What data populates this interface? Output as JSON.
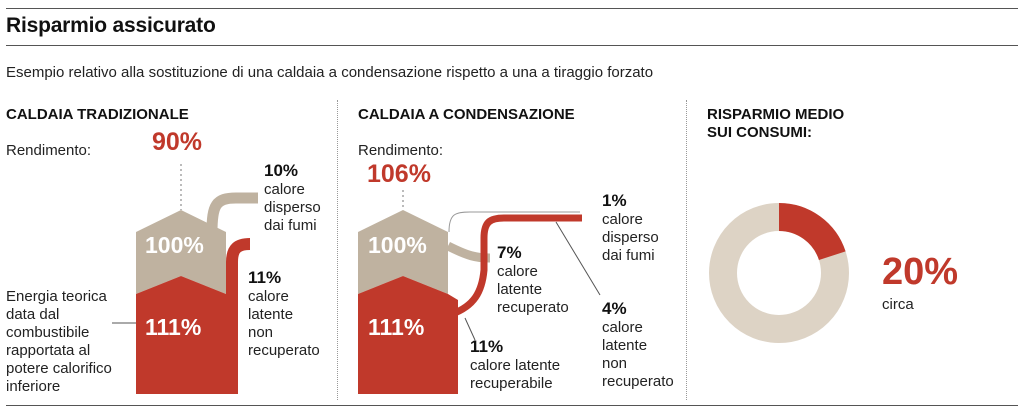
{
  "title": "Risparmio assicurato",
  "subtitle": "Esempio relativo alla sostituzione di una caldaia a condensazione rispetto a una a tiraggio forzato",
  "colors": {
    "beige": "#bfb2a0",
    "red": "#c0392b",
    "ring_beige": "#ddd3c5"
  },
  "traditional": {
    "heading": "CALDAIA TRADIZIONALE",
    "rendimento_label": "Rendimento:",
    "rendimento_value": "90%",
    "block_top": "100%",
    "block_bottom": "111%",
    "loss1_pct": "10%",
    "loss1_text": [
      "calore",
      "disperso",
      "dai fumi"
    ],
    "loss2_pct": "11%",
    "loss2_text": [
      "calore",
      "latente",
      "non",
      "recuperato"
    ],
    "energy_text": [
      "Energia teorica",
      "data dal",
      "combustibile",
      "rapportata al",
      "potere calorifico",
      "inferiore"
    ]
  },
  "condensing": {
    "heading": "CALDAIA A CONDENSAZIONE",
    "rendimento_label": "Rendimento:",
    "rendimento_value": "106%",
    "block_top": "100%",
    "block_bottom": "111%",
    "recovered_pct": "7%",
    "recovered_text": [
      "calore",
      "latente",
      "recuperato"
    ],
    "recoverable_pct": "11%",
    "recoverable_text": [
      "calore latente",
      "recuperabile"
    ],
    "loss1_pct": "1%",
    "loss1_text": [
      "calore",
      "disperso",
      "dai fumi"
    ],
    "loss2_pct": "4%",
    "loss2_text": [
      "calore",
      "latente",
      "non",
      "recuperato"
    ]
  },
  "savings": {
    "heading": [
      "RISPARMIO MEDIO",
      "SUI CONSUMI:"
    ],
    "value": "20%",
    "value_fraction": 0.2,
    "note": "circa"
  }
}
